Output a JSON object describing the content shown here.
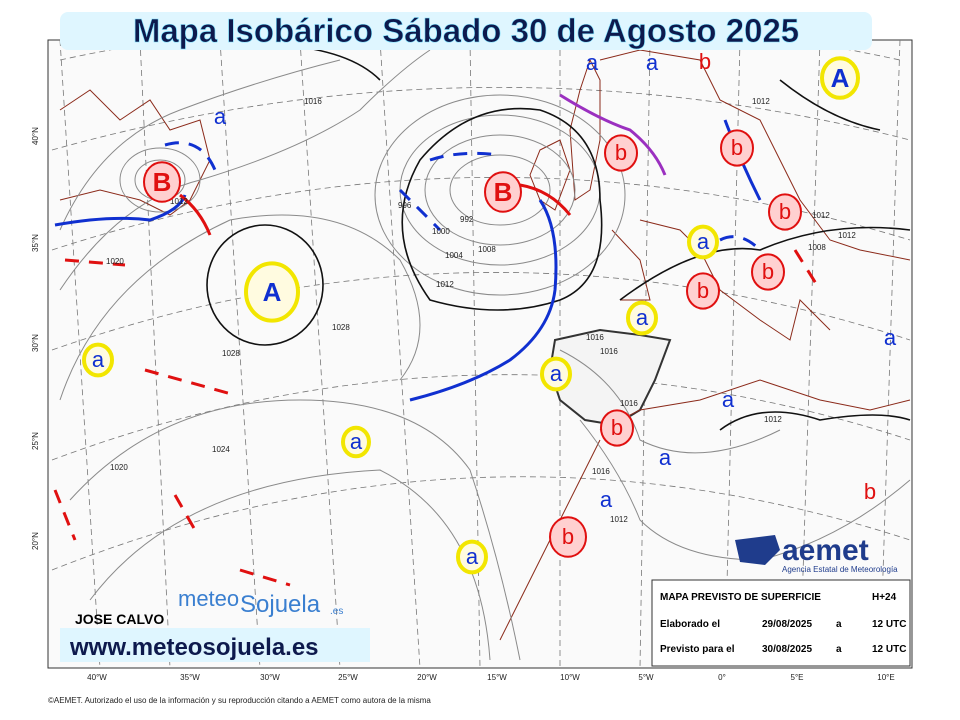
{
  "title": "Mapa Isobárico Sábado 30 de Agosto 2025",
  "author": "JOSE CALVO",
  "website": "www.meteosojuela.es",
  "brand": {
    "left": "meteo",
    "right": "Sojuela",
    "suffix": ".es"
  },
  "aemet": {
    "name": "aemet",
    "subtitle": "Agencia Estatal de Meteorología"
  },
  "info_box": {
    "rows": [
      [
        "MAPA PREVISTO DE SUPERFICIE",
        "H+24"
      ],
      [
        "Elaborado el",
        "29/08/2025",
        "a",
        "12 UTC"
      ],
      [
        "Previsto para el",
        "30/08/2025",
        "a",
        "12 UTC"
      ]
    ]
  },
  "footer": "©AEMET. Autorizado el uso de la información y su reproducción citando a AEMET como autora de la misma",
  "pressure_centers": [
    "A",
    "A",
    "B",
    "B",
    "b",
    "b",
    "b",
    "b",
    "b",
    "b",
    "b",
    "b",
    "b",
    "a",
    "a",
    "a",
    "a",
    "a",
    "a",
    "a",
    "a",
    "a",
    "a",
    "a",
    "a",
    "a"
  ],
  "isobars": [
    "1016",
    "1028",
    "1028",
    "1012",
    "1008",
    "1004",
    "1000",
    "996",
    "992",
    "1020",
    "1024",
    "1020",
    "1012",
    "1012",
    "1016",
    "1016",
    "1016",
    "1012",
    "1012",
    "1008",
    "1012",
    "1016",
    "1012"
  ],
  "longitudes": [
    "40°W",
    "35°W",
    "30°W",
    "25°W",
    "20°W",
    "15°W",
    "10°W",
    "5°W",
    "0°",
    "5°E",
    "10°E"
  ],
  "latitudes": [
    "40°N",
    "35°N",
    "30°N",
    "25°N",
    "20°N"
  ]
}
